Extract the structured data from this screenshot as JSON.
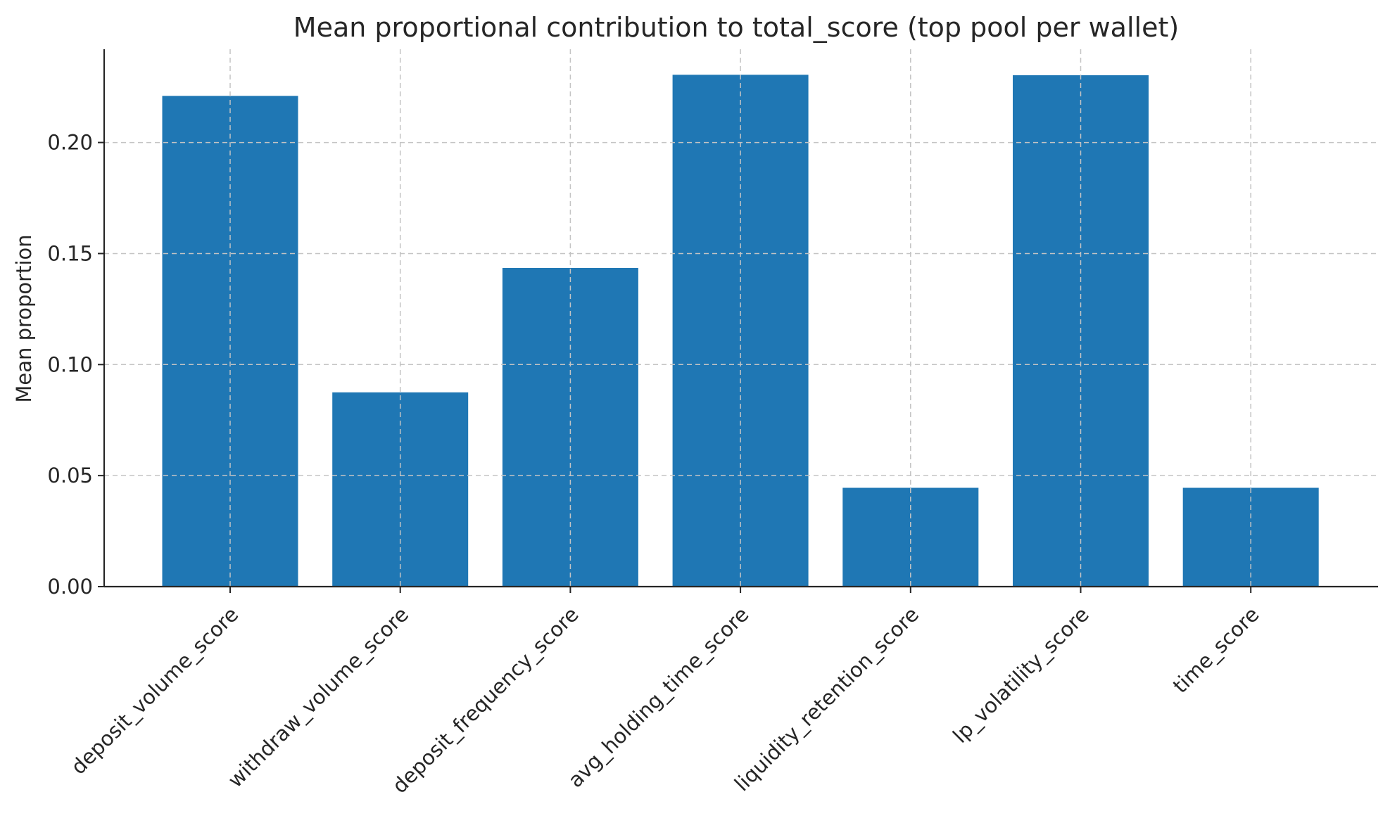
{
  "chart_data": {
    "type": "bar",
    "title": "Mean proportional contribution to total_score (top pool per wallet)",
    "xlabel": "",
    "ylabel": "Mean proportion",
    "categories": [
      "deposit_volume_score",
      "withdraw_volume_score",
      "deposit_frequency_score",
      "avg_holding_time_score",
      "liquidity_retention_score",
      "lp_volatility_score",
      "time_score"
    ],
    "values": [
      0.221,
      0.0875,
      0.1435,
      0.2305,
      0.0445,
      0.2303,
      0.0445
    ],
    "ylim": [
      0,
      0.242
    ],
    "yticks": [
      0.0,
      0.05,
      0.1,
      0.15,
      0.2
    ],
    "ytick_labels": [
      "0.00",
      "0.05",
      "0.10",
      "0.15",
      "0.20"
    ],
    "grid": true,
    "bar_color": "#1f77b4"
  }
}
